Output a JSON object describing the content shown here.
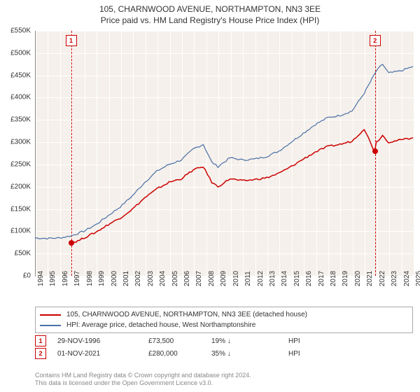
{
  "titles": {
    "line1": "105, CHARNWOOD AVENUE, NORTHAMPTON, NN3 3EE",
    "line2": "Price paid vs. HM Land Registry's House Price Index (HPI)"
  },
  "chart": {
    "type": "line",
    "background_color": "#f5f0eb",
    "grid_color": "#ffffff",
    "axis_color": "#888888",
    "ylim": [
      0,
      550000
    ],
    "ytick_step": 50000,
    "yticks_labels": [
      "£0",
      "£50K",
      "£100K",
      "£150K",
      "£200K",
      "£250K",
      "£300K",
      "£350K",
      "£400K",
      "£450K",
      "£500K",
      "£550K"
    ],
    "xlim": [
      1994,
      2025
    ],
    "xticks": [
      1994,
      1995,
      1996,
      1997,
      1998,
      1999,
      2000,
      2001,
      2002,
      2003,
      2004,
      2005,
      2006,
      2007,
      2008,
      2009,
      2010,
      2011,
      2012,
      2013,
      2014,
      2015,
      2016,
      2017,
      2018,
      2019,
      2020,
      2021,
      2022,
      2023,
      2024,
      2025
    ],
    "series": [
      {
        "name": "hpi",
        "label": "HPI: Average price, detached house, West Northamptonshire",
        "color": "#4a6fa5",
        "line_width": 1.2,
        "points": [
          [
            1994.0,
            85000
          ],
          [
            1995.0,
            84000
          ],
          [
            1996.0,
            85000
          ],
          [
            1997.0,
            90000
          ],
          [
            1998.0,
            100000
          ],
          [
            1999.0,
            115000
          ],
          [
            2000.0,
            135000
          ],
          [
            2001.0,
            155000
          ],
          [
            2002.0,
            180000
          ],
          [
            2003.0,
            210000
          ],
          [
            2004.0,
            235000
          ],
          [
            2005.0,
            250000
          ],
          [
            2006.0,
            260000
          ],
          [
            2007.0,
            285000
          ],
          [
            2007.8,
            295000
          ],
          [
            2008.5,
            255000
          ],
          [
            2009.0,
            245000
          ],
          [
            2010.0,
            265000
          ],
          [
            2011.0,
            260000
          ],
          [
            2012.0,
            262000
          ],
          [
            2013.0,
            268000
          ],
          [
            2014.0,
            280000
          ],
          [
            2015.0,
            300000
          ],
          [
            2016.0,
            320000
          ],
          [
            2017.0,
            340000
          ],
          [
            2018.0,
            355000
          ],
          [
            2019.0,
            360000
          ],
          [
            2020.0,
            370000
          ],
          [
            2021.0,
            410000
          ],
          [
            2022.0,
            460000
          ],
          [
            2022.5,
            475000
          ],
          [
            2023.0,
            455000
          ],
          [
            2024.0,
            460000
          ],
          [
            2025.0,
            470000
          ]
        ]
      },
      {
        "name": "property",
        "label": "105, CHARNWOOD AVENUE, NORTHAMPTON, NN3 3EE (detached house)",
        "color": "#cc0000",
        "line_width": 1.5,
        "points": [
          [
            1996.9,
            73500
          ],
          [
            1997.5,
            78000
          ],
          [
            1998.0,
            85000
          ],
          [
            1999.0,
            98000
          ],
          [
            2000.0,
            115000
          ],
          [
            2001.0,
            130000
          ],
          [
            2002.0,
            150000
          ],
          [
            2003.0,
            175000
          ],
          [
            2004.0,
            195000
          ],
          [
            2005.0,
            210000
          ],
          [
            2006.0,
            218000
          ],
          [
            2007.0,
            238000
          ],
          [
            2007.8,
            245000
          ],
          [
            2008.5,
            210000
          ],
          [
            2009.0,
            200000
          ],
          [
            2010.0,
            218000
          ],
          [
            2011.0,
            213000
          ],
          [
            2012.0,
            216000
          ],
          [
            2013.0,
            220000
          ],
          [
            2014.0,
            230000
          ],
          [
            2015.0,
            245000
          ],
          [
            2016.0,
            262000
          ],
          [
            2017.0,
            278000
          ],
          [
            2018.0,
            290000
          ],
          [
            2019.0,
            295000
          ],
          [
            2020.0,
            302000
          ],
          [
            2021.0,
            330000
          ],
          [
            2021.83,
            280000
          ],
          [
            2022.0,
            300000
          ],
          [
            2022.5,
            315000
          ],
          [
            2023.0,
            300000
          ],
          [
            2024.0,
            305000
          ],
          [
            2025.0,
            310000
          ]
        ]
      }
    ],
    "sale_points": [
      {
        "x": 1996.9,
        "y": 73500,
        "color": "#cc0000"
      },
      {
        "x": 2021.83,
        "y": 280000,
        "color": "#cc0000"
      }
    ],
    "markers": [
      {
        "num": "1",
        "x": 1996.9,
        "color": "#cc0000"
      },
      {
        "num": "2",
        "x": 2021.83,
        "color": "#cc0000"
      }
    ]
  },
  "legend": [
    {
      "color": "#cc0000",
      "label": "105, CHARNWOOD AVENUE, NORTHAMPTON, NN3 3EE (detached house)"
    },
    {
      "color": "#4a6fa5",
      "label": "HPI: Average price, detached house, West Northamptonshire"
    }
  ],
  "sales": [
    {
      "num": "1",
      "color": "#cc0000",
      "date": "29-NOV-1996",
      "price": "£73,500",
      "pct": "19%",
      "arrow": "down",
      "vs": "HPI"
    },
    {
      "num": "2",
      "color": "#cc0000",
      "date": "01-NOV-2021",
      "price": "£280,000",
      "pct": "35%",
      "arrow": "down",
      "vs": "HPI"
    }
  ],
  "footer": {
    "line1": "Contains HM Land Registry data © Crown copyright and database right 2024.",
    "line2": "This data is licensed under the Open Government Licence v3.0."
  }
}
